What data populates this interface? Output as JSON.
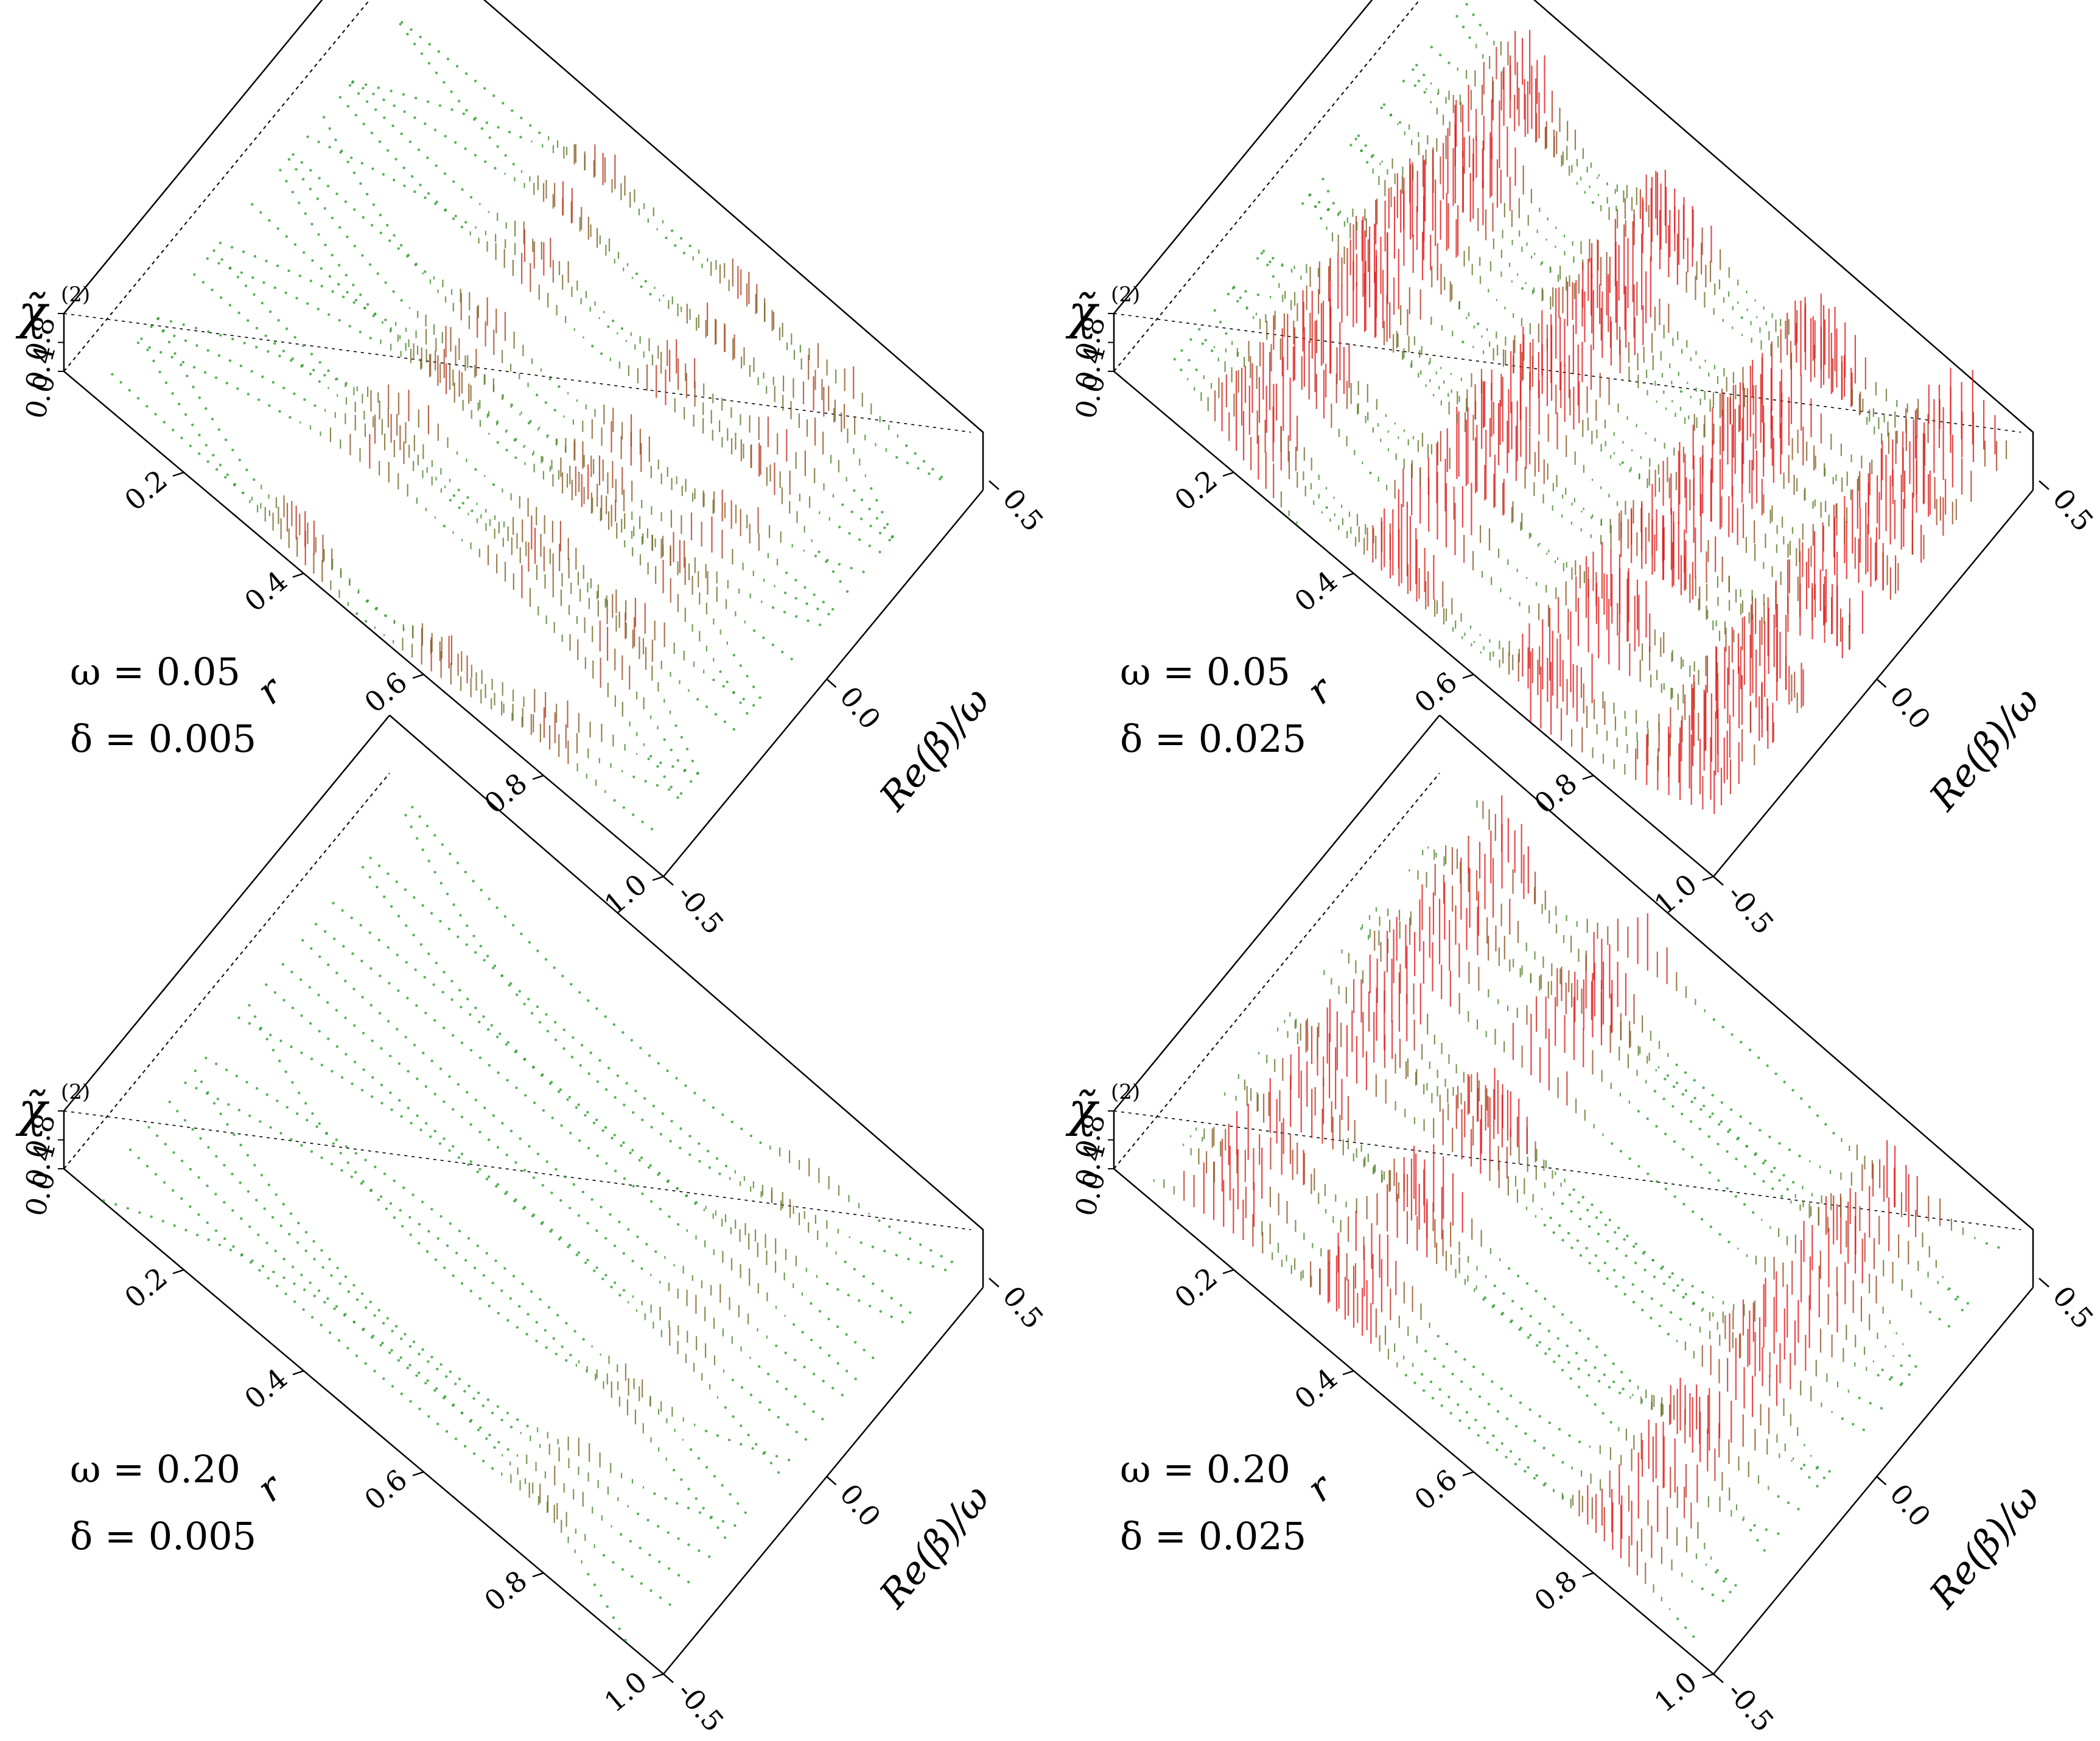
{
  "chart_data": [
    {
      "type": "scatter",
      "panel": "top-left",
      "omega_label": "ω = 0.05",
      "delta_label": "δ = 0.005",
      "zlabel": "χ̃",
      "zlabel_sup": "(2)",
      "xlabel": "r",
      "ylabel": "Re(β)/ω",
      "x_ticks": [
        "0.2",
        "0.4",
        "0.6",
        "0.8",
        "1.0"
      ],
      "y_ticks": [
        "-0.5",
        "0.0",
        "0.5"
      ],
      "z_ticks": [
        "0.0",
        "0.4",
        "0.8"
      ],
      "xlim": [
        0.0,
        1.0
      ],
      "ylim": [
        -0.5,
        0.5
      ],
      "zlim": [
        0.0,
        0.8
      ],
      "colors": {
        "low": "#2e9e2e",
        "high": "#e01b1b"
      }
    },
    {
      "type": "scatter",
      "panel": "top-right",
      "omega_label": "ω = 0.05",
      "delta_label": "δ = 0.025",
      "zlabel": "χ̃",
      "zlabel_sup": "(2)",
      "xlabel": "r",
      "ylabel": "Re(β)/ω",
      "x_ticks": [
        "0.2",
        "0.4",
        "0.6",
        "0.8",
        "1.0"
      ],
      "y_ticks": [
        "-0.5",
        "0.0",
        "0.5"
      ],
      "z_ticks": [
        "0.0",
        "0.4",
        "0.8"
      ],
      "xlim": [
        0.0,
        1.0
      ],
      "ylim": [
        -0.5,
        0.5
      ],
      "zlim": [
        0.0,
        0.8
      ],
      "colors": {
        "low": "#2e9e2e",
        "high": "#e01b1b"
      }
    },
    {
      "type": "scatter",
      "panel": "bottom-left",
      "omega_label": "ω = 0.20",
      "delta_label": "δ = 0.005",
      "zlabel": "χ̃",
      "zlabel_sup": "(2)",
      "xlabel": "r",
      "ylabel": "Re(β)/ω",
      "x_ticks": [
        "0.2",
        "0.4",
        "0.6",
        "0.8",
        "1.0"
      ],
      "y_ticks": [
        "-0.5",
        "0.0",
        "0.5"
      ],
      "z_ticks": [
        "0.0",
        "0.4",
        "0.8"
      ],
      "xlim": [
        0.0,
        1.0
      ],
      "ylim": [
        -0.5,
        0.5
      ],
      "zlim": [
        0.0,
        0.8
      ],
      "colors": {
        "low": "#2e9e2e",
        "high": "#e01b1b"
      }
    },
    {
      "type": "scatter",
      "panel": "bottom-right",
      "omega_label": "ω = 0.20",
      "delta_label": "δ = 0.025",
      "zlabel": "χ̃",
      "zlabel_sup": "(2)",
      "xlabel": "r",
      "ylabel": "Re(β)/ω",
      "x_ticks": [
        "0.2",
        "0.4",
        "0.6",
        "0.8",
        "1.0"
      ],
      "y_ticks": [
        "-0.5",
        "0.0",
        "0.5"
      ],
      "z_ticks": [
        "0.0",
        "0.4",
        "0.8"
      ],
      "xlim": [
        0.0,
        1.0
      ],
      "ylim": [
        -0.5,
        0.5
      ],
      "zlim": [
        0.0,
        0.8
      ],
      "colors": {
        "low": "#2e9e2e",
        "high": "#e01b1b"
      }
    }
  ]
}
